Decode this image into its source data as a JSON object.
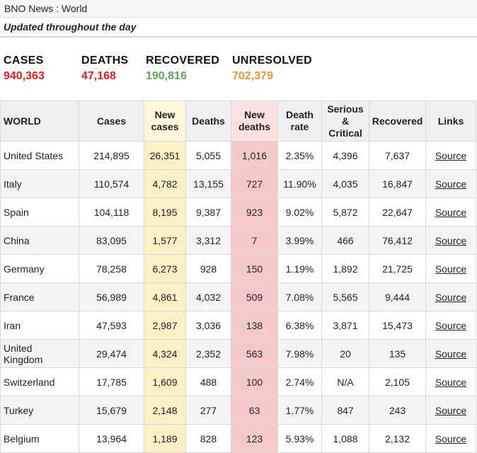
{
  "window": {
    "title": "BNO News : World"
  },
  "updated": "Updated throughout the day",
  "summary": {
    "cases": {
      "label": "CASES",
      "value": "940,363",
      "color": "#e02020"
    },
    "deaths": {
      "label": "DEATHS",
      "value": "47,168",
      "color": "#e02020"
    },
    "recovered": {
      "label": "RECOVERED",
      "value": "190,816",
      "color": "#5fa55a"
    },
    "unresolved": {
      "label": "UNRESOLVED",
      "value": "702,379",
      "color": "#e8953b"
    }
  },
  "table": {
    "headers": {
      "world": "WORLD",
      "cases": "Cases",
      "new_cases_1": "New",
      "new_cases_2": "cases",
      "deaths": "Deaths",
      "new_deaths_1": "New",
      "new_deaths_2": "deaths",
      "death_rate_1": "Death",
      "death_rate_2": "rate",
      "serious_1": "Serious",
      "serious_2": "&",
      "serious_3": "Critical",
      "recovered": "Recovered",
      "links": "Links"
    },
    "rows": [
      {
        "country": "United States",
        "cases": "214,895",
        "new_cases": "26,351",
        "deaths": "5,055",
        "new_deaths": "1,016",
        "death_rate": "2.35%",
        "serious": "4,396",
        "recovered": "7,637",
        "link": "Source"
      },
      {
        "country": "Italy",
        "cases": "110,574",
        "new_cases": "4,782",
        "deaths": "13,155",
        "new_deaths": "727",
        "death_rate": "11.90%",
        "serious": "4,035",
        "recovered": "16,847",
        "link": "Source"
      },
      {
        "country": "Spain",
        "cases": "104,118",
        "new_cases": "8,195",
        "deaths": "9,387",
        "new_deaths": "923",
        "death_rate": "9.02%",
        "serious": "5,872",
        "recovered": "22,647",
        "link": "Source"
      },
      {
        "country": "China",
        "cases": "83,095",
        "new_cases": "1,577",
        "deaths": "3,312",
        "new_deaths": "7",
        "death_rate": "3.99%",
        "serious": "466",
        "recovered": "76,412",
        "link": "Source"
      },
      {
        "country": "Germany",
        "cases": "78,258",
        "new_cases": "6,273",
        "deaths": "928",
        "new_deaths": "150",
        "death_rate": "1.19%",
        "serious": "1,892",
        "recovered": "21,725",
        "link": "Source"
      },
      {
        "country": "France",
        "cases": "56,989",
        "new_cases": "4,861",
        "deaths": "4,032",
        "new_deaths": "509",
        "death_rate": "7.08%",
        "serious": "5,565",
        "recovered": "9,444",
        "link": "Source"
      },
      {
        "country": "Iran",
        "cases": "47,593",
        "new_cases": "2,987",
        "deaths": "3,036",
        "new_deaths": "138",
        "death_rate": "6.38%",
        "serious": "3,871",
        "recovered": "15,473",
        "link": "Source"
      },
      {
        "country_1": "United",
        "country_2": "Kingdom",
        "cases": "29,474",
        "new_cases": "4,324",
        "deaths": "2,352",
        "new_deaths": "563",
        "death_rate": "7.98%",
        "serious": "20",
        "recovered": "135",
        "link": "Source"
      },
      {
        "country": "Switzerland",
        "cases": "17,785",
        "new_cases": "1,609",
        "deaths": "488",
        "new_deaths": "100",
        "death_rate": "2.74%",
        "serious": "N/A",
        "recovered": "2,105",
        "link": "Source"
      },
      {
        "country": "Turkey",
        "cases": "15,679",
        "new_cases": "2,148",
        "deaths": "277",
        "new_deaths": "63",
        "death_rate": "1.77%",
        "serious": "847",
        "recovered": "243",
        "link": "Source"
      },
      {
        "country": "Belgium",
        "cases": "13,964",
        "new_cases": "1,189",
        "deaths": "828",
        "new_deaths": "123",
        "death_rate": "5.93%",
        "serious": "1,088",
        "recovered": "2,132",
        "link": "Source"
      }
    ]
  }
}
